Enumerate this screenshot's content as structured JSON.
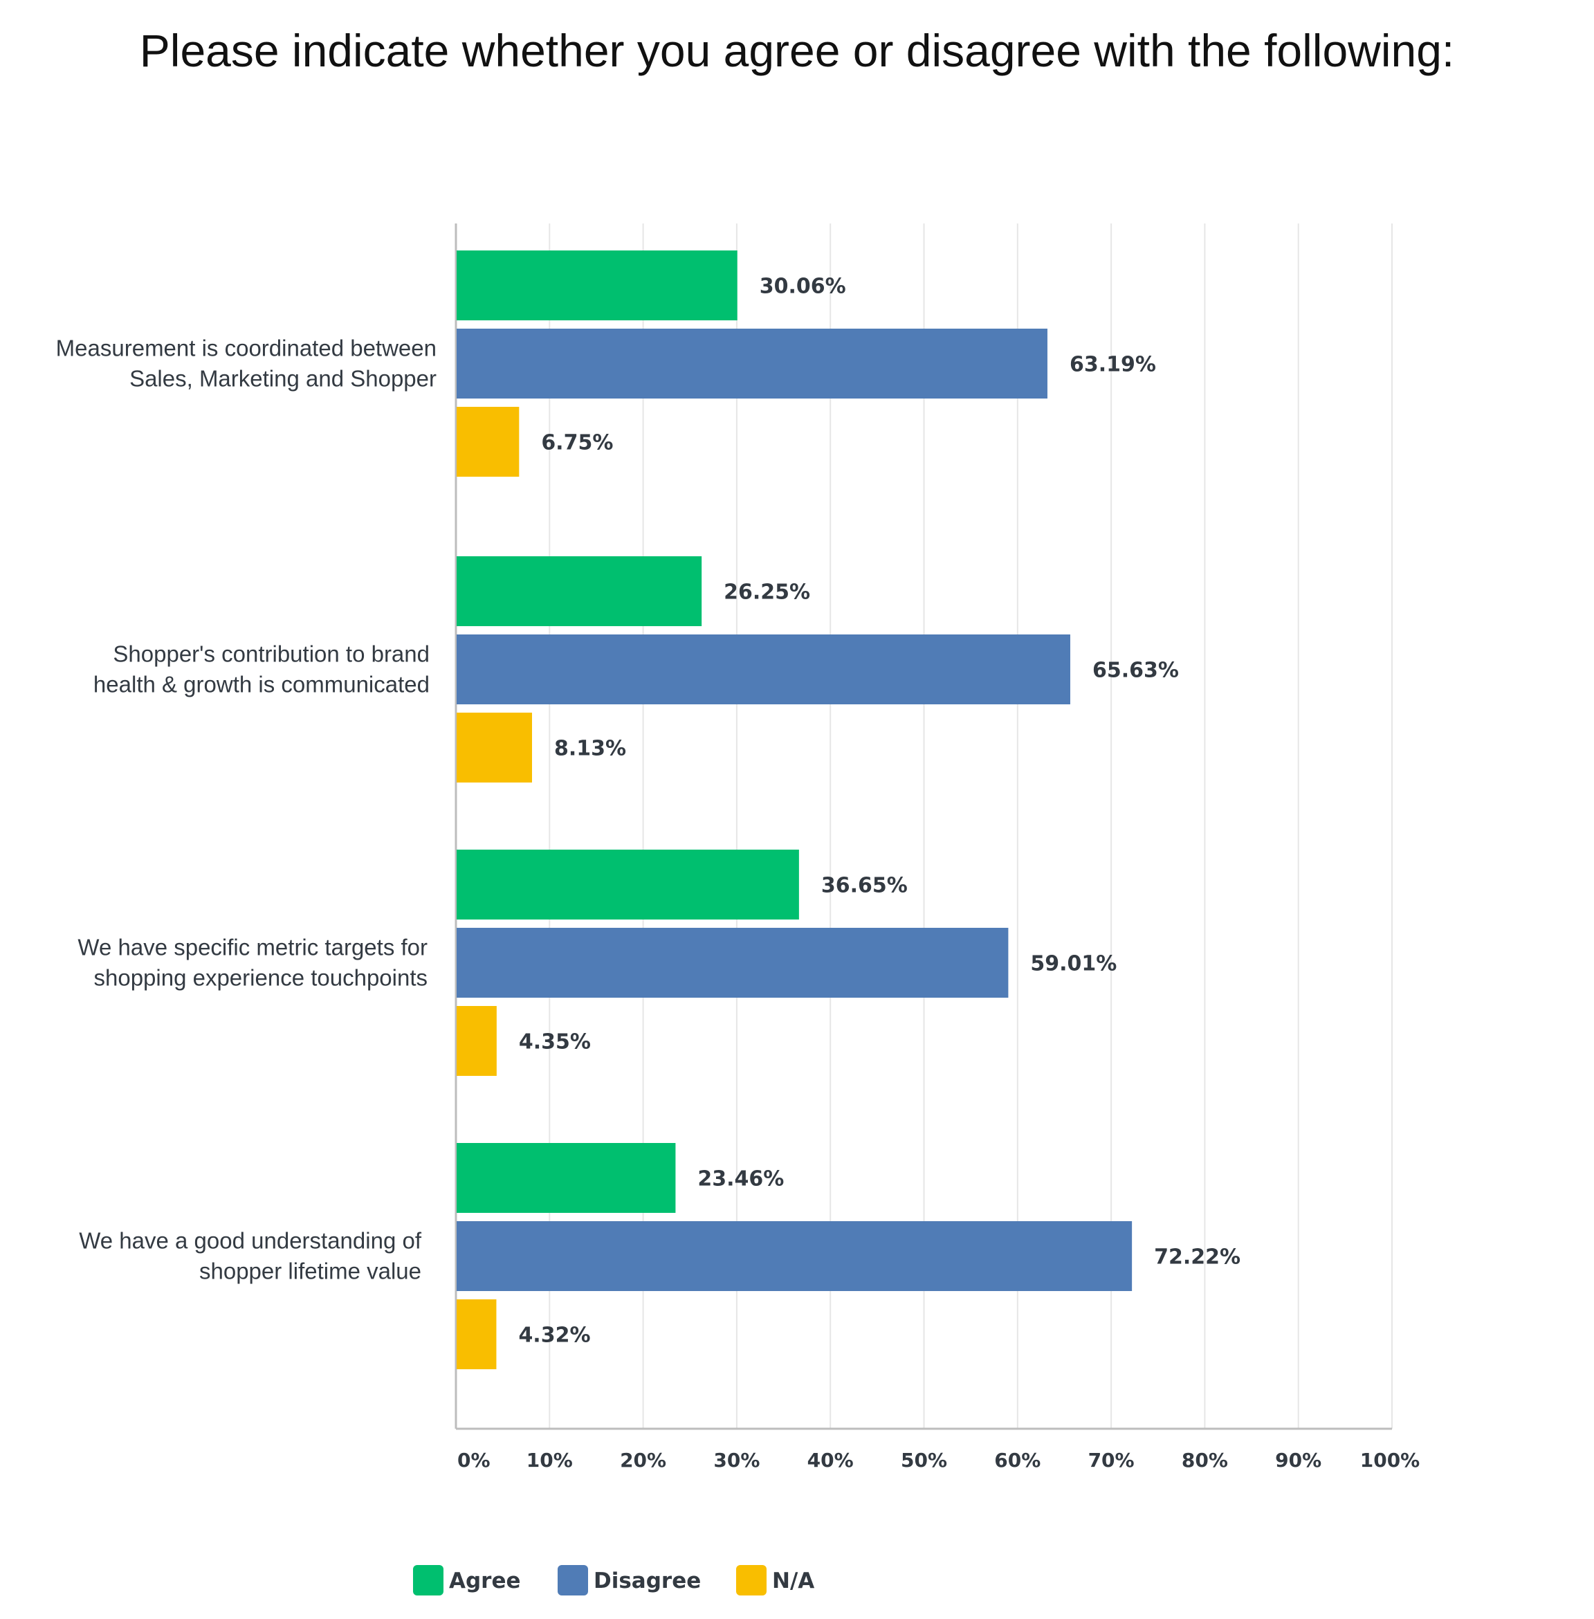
{
  "chart_data": {
    "type": "bar",
    "orientation": "horizontal",
    "title": "Please indicate whether you agree or disagree with the following:",
    "categories": [
      [
        "Measurement is coordinated between",
        "Sales, Marketing and Shopper"
      ],
      [
        "Shopper's contribution to brand",
        "health & growth is communicated"
      ],
      [
        "We have specific metric targets for",
        "shopping experience touchpoints"
      ],
      [
        "We have a good understanding of",
        "shopper lifetime value"
      ]
    ],
    "series": [
      {
        "name": "Agree",
        "color": "#00bf6f",
        "values": [
          30.06,
          26.25,
          36.65,
          23.46
        ],
        "labels": [
          "30.06%",
          "26.25%",
          "36.65%",
          "23.46%"
        ]
      },
      {
        "name": "Disagree",
        "color": "#507cb6",
        "values": [
          63.19,
          65.63,
          59.01,
          72.22
        ],
        "labels": [
          "63.19%",
          "65.63%",
          "59.01%",
          "72.22%"
        ]
      },
      {
        "name": "N/A",
        "color": "#f9be00",
        "values": [
          6.75,
          8.13,
          4.35,
          4.32
        ],
        "labels": [
          "6.75%",
          "8.13%",
          "4.35%",
          "4.32%"
        ]
      }
    ],
    "xlim": [
      0,
      100
    ],
    "xticks": [
      "0%",
      "10%",
      "20%",
      "30%",
      "40%",
      "50%",
      "60%",
      "70%",
      "80%",
      "90%",
      "100%"
    ],
    "grid": true,
    "legend_position": "bottom"
  }
}
